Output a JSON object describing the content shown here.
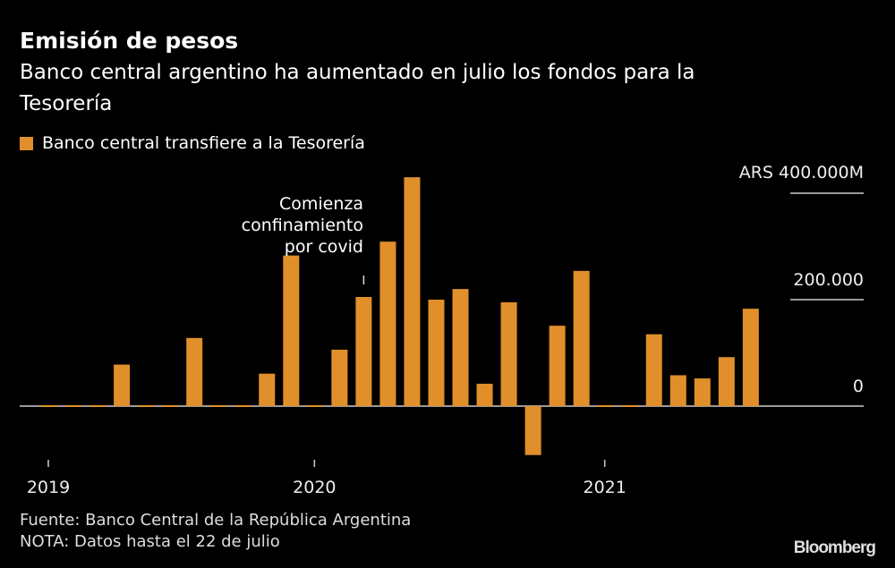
{
  "title": "Emisión de pesos",
  "subtitle": "Banco central argentino ha aumentado en julio los fondos para la Tesorería",
  "legend": {
    "label": "Banco central transfiere a la Tesorería",
    "color": "#e08f2a"
  },
  "annotation": {
    "line1": "Comienza",
    "line2": "confinamiento",
    "line3": "por covid",
    "bar_index": 13
  },
  "footer": {
    "source": "Fuente: Banco Central de la República Argentina",
    "note": "NOTA: Datos hasta el 22 de julio",
    "logo": "Bloomberg"
  },
  "chart_data": {
    "type": "bar",
    "series": [
      {
        "name": "Banco central transfiere a la Tesorería",
        "color": "#e08f2a",
        "values": [
          0,
          0,
          0,
          78000,
          0,
          0,
          128000,
          0,
          0,
          61000,
          283000,
          0,
          106000,
          205000,
          309000,
          430000,
          200000,
          220000,
          42000,
          195000,
          -92000,
          151000,
          254000,
          0,
          0,
          135000,
          58000,
          52000,
          92000,
          183000
        ]
      }
    ],
    "x_ticks": [
      {
        "label": "2019",
        "bar_index": 0
      },
      {
        "label": "2020",
        "bar_index": 11
      },
      {
        "label": "2021",
        "bar_index": 23
      }
    ],
    "y_ticks": [
      {
        "value": 400000,
        "label": "ARS 400.000M"
      },
      {
        "value": 200000,
        "label": "200.000"
      },
      {
        "value": 0,
        "label": "0"
      }
    ],
    "ylim": [
      -100000,
      430000
    ],
    "unit": "ARS millones",
    "grid": "right-side stubs",
    "legend_position": "top-left"
  }
}
